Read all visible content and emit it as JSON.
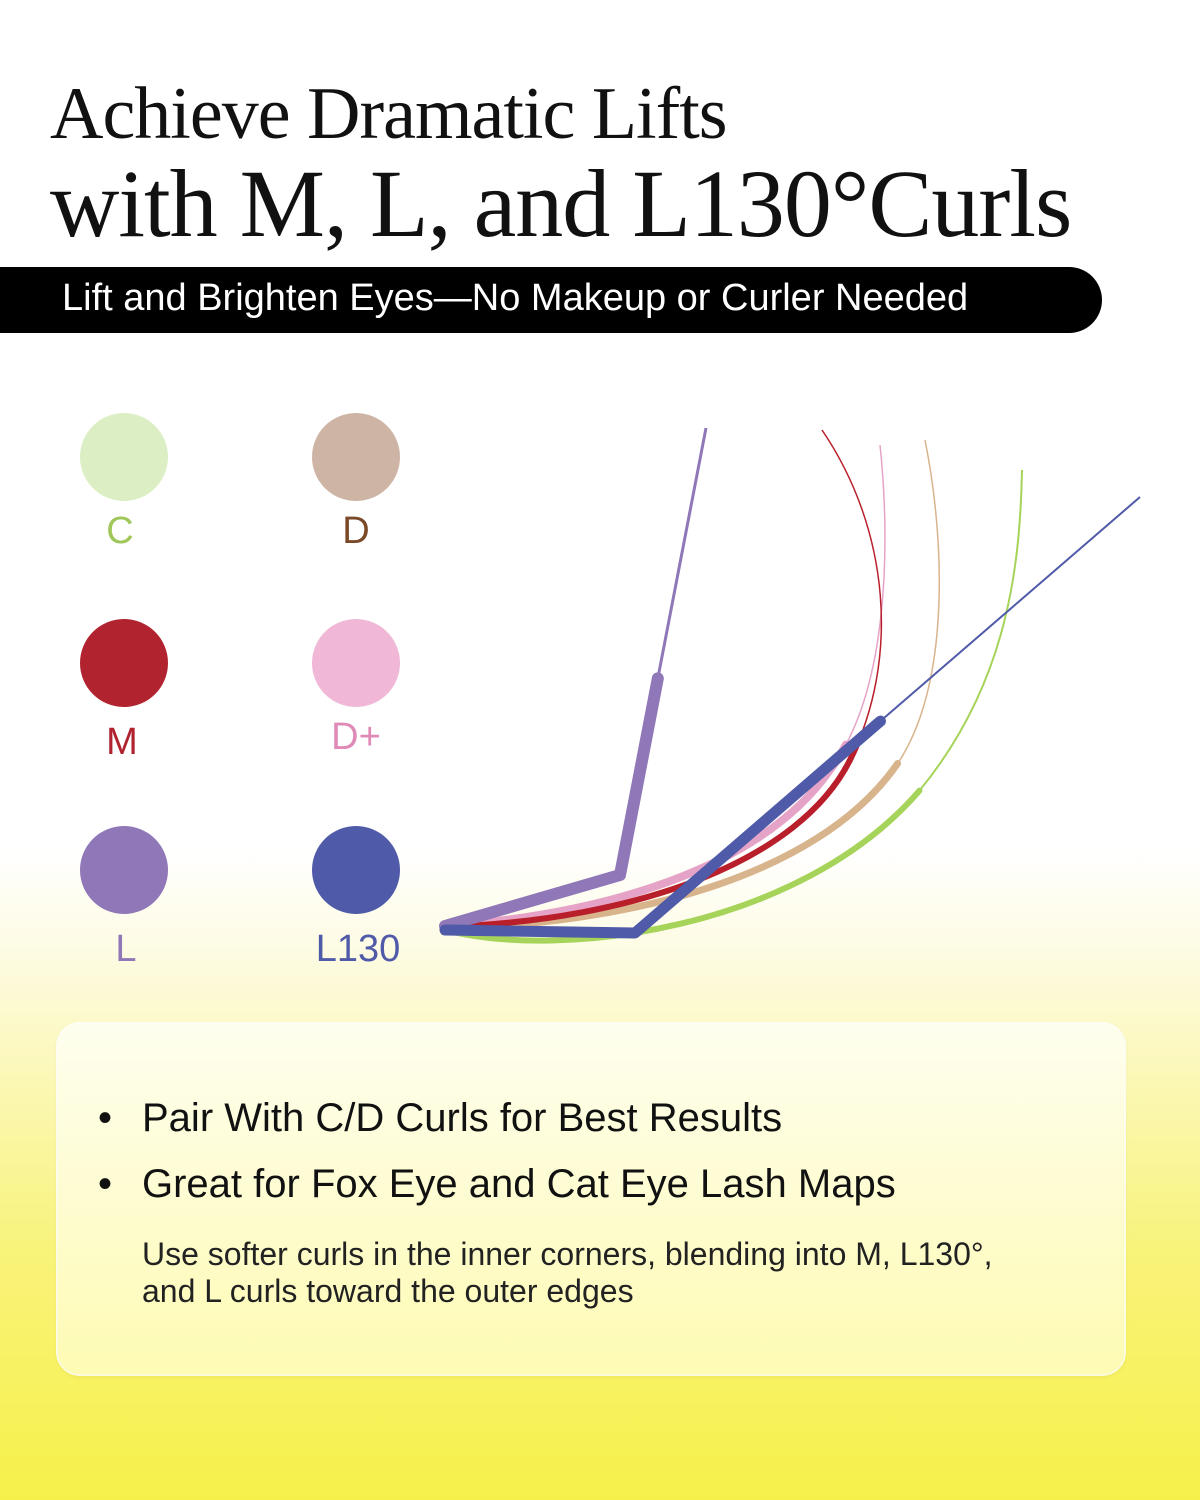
{
  "header": {
    "title_line1": "Achieve Dramatic Lifts",
    "title_line2": "with M, L, and L130°Curls",
    "banner": "Lift and Brighten Eyes—No Makeup or Curler Needed"
  },
  "legend": [
    {
      "label": "C",
      "color": "#dcefc4",
      "text_color": "#9fc75a"
    },
    {
      "label": "D",
      "color": "#cdb4a5",
      "text_color": "#7a4a28"
    },
    {
      "label": "M",
      "color": "#b0232f",
      "text_color": "#b0232f"
    },
    {
      "label": "D+",
      "color": "#f0b8d6",
      "text_color": "#e08ab8"
    },
    {
      "label": "L",
      "color": "#8f77b8",
      "text_color": "#8f77b8"
    },
    {
      "label": "L130",
      "color": "#4f5aa8",
      "text_color": "#4f5aa8"
    }
  ],
  "curve_colors": {
    "C": "#a6d45a",
    "D": "#d8b48c",
    "D+": "#e6a3c8",
    "M": "#b81f2a",
    "L": "#8f77b8",
    "L130": "#4f5aa8"
  },
  "card": {
    "bullets": [
      "Pair With C/D Curls for Best Results",
      "Great for Fox Eye and Cat Eye Lash Maps"
    ],
    "bullet_symbol": "•",
    "note": "Use softer curls in the inner corners, blending into M, L130°, and L curls toward the outer edges"
  }
}
